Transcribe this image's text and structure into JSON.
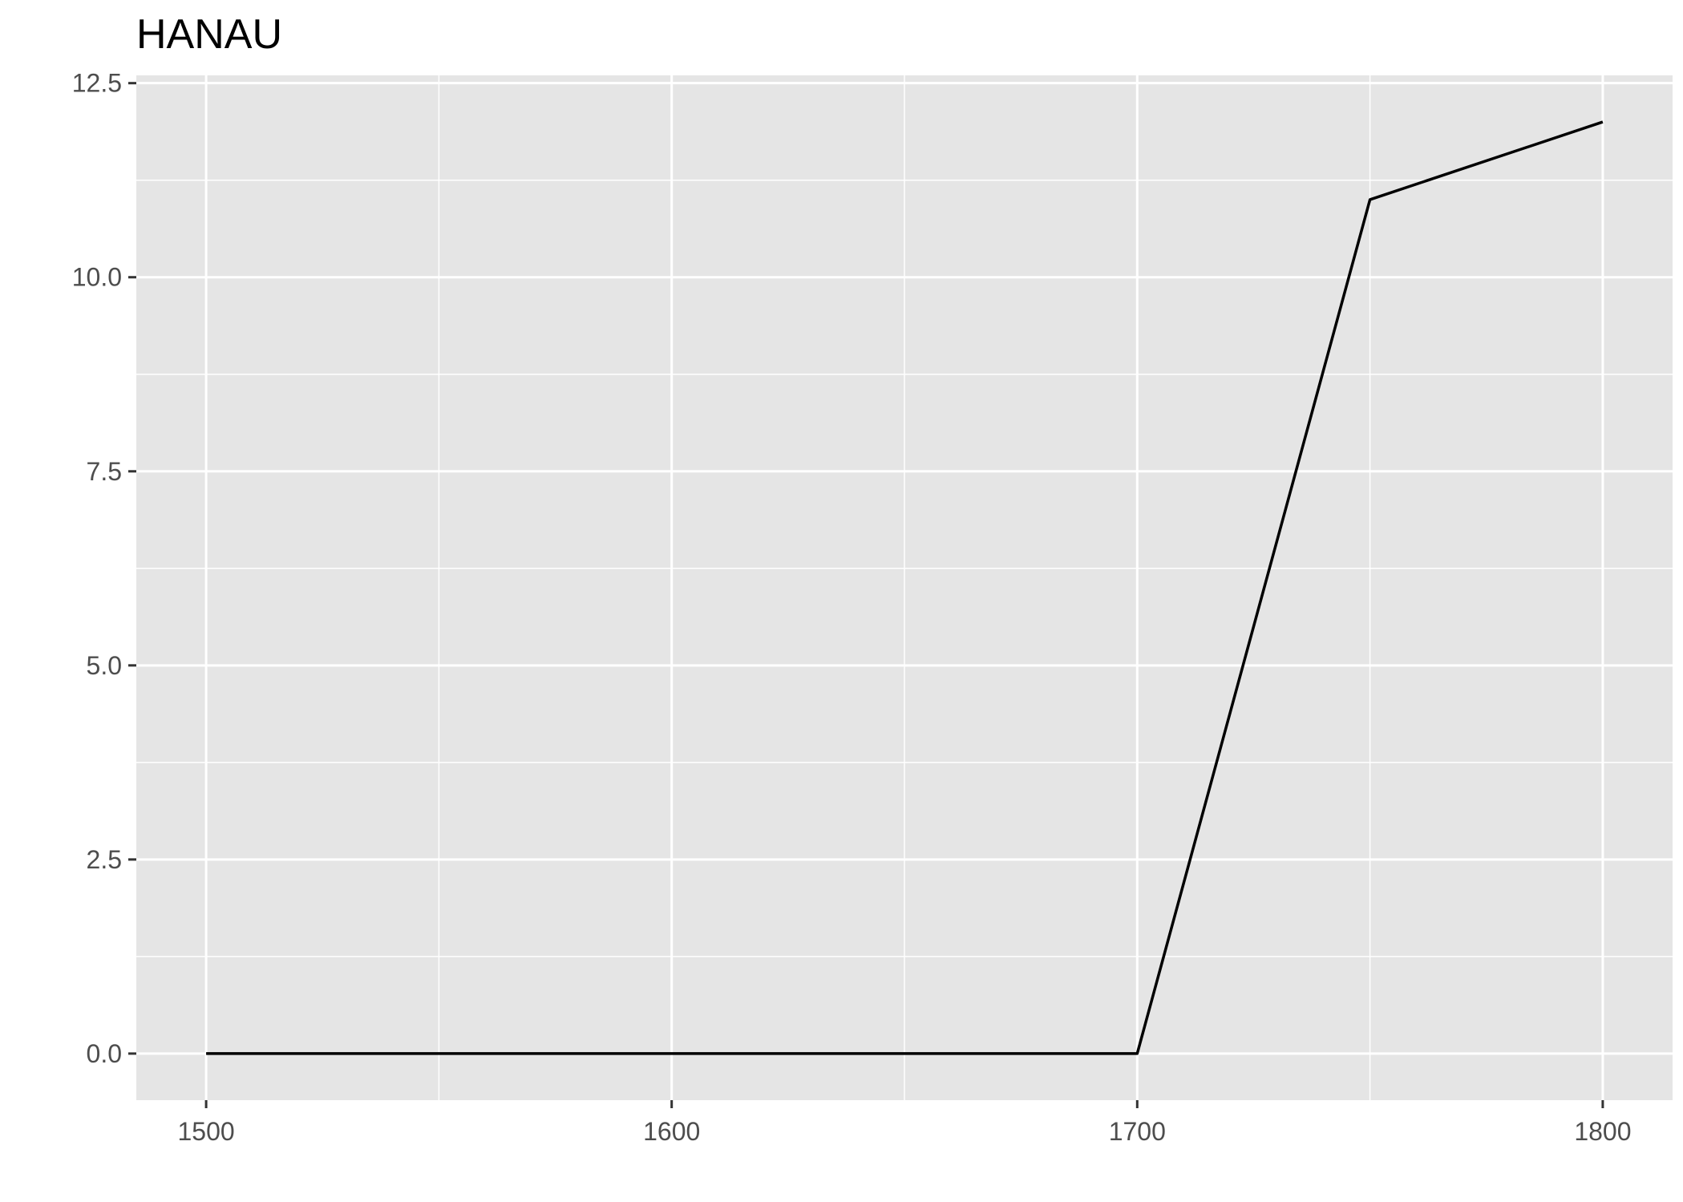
{
  "chart_data": {
    "type": "line",
    "title": "HANAU",
    "xlabel": "",
    "ylabel": "",
    "x": [
      1500,
      1550,
      1600,
      1650,
      1700,
      1750,
      1800
    ],
    "series": [
      {
        "values": [
          0,
          0,
          0,
          0,
          0,
          11,
          12
        ]
      }
    ],
    "xlim": [
      1485,
      1815
    ],
    "ylim": [
      -0.6,
      12.6
    ],
    "x_ticks": [
      1500,
      1600,
      1700,
      1800
    ],
    "x_tick_labels": [
      "1500",
      "1600",
      "1700",
      "1800"
    ],
    "x_minor_ticks": [
      1550,
      1650,
      1750
    ],
    "y_ticks": [
      0,
      2.5,
      5,
      7.5,
      10,
      12.5
    ],
    "y_tick_labels": [
      "0.0",
      "2.5",
      "5.0",
      "7.5",
      "10.0",
      "12.5"
    ],
    "y_minor_ticks": [
      1.25,
      3.75,
      6.25,
      8.75,
      11.25
    ],
    "grid": true,
    "legend": "none"
  },
  "colors": {
    "panel_background": "#e5e5e5",
    "grid": "#ffffff",
    "line": "#000000",
    "tick": "#333333",
    "tick_label": "#4d4d4d"
  }
}
